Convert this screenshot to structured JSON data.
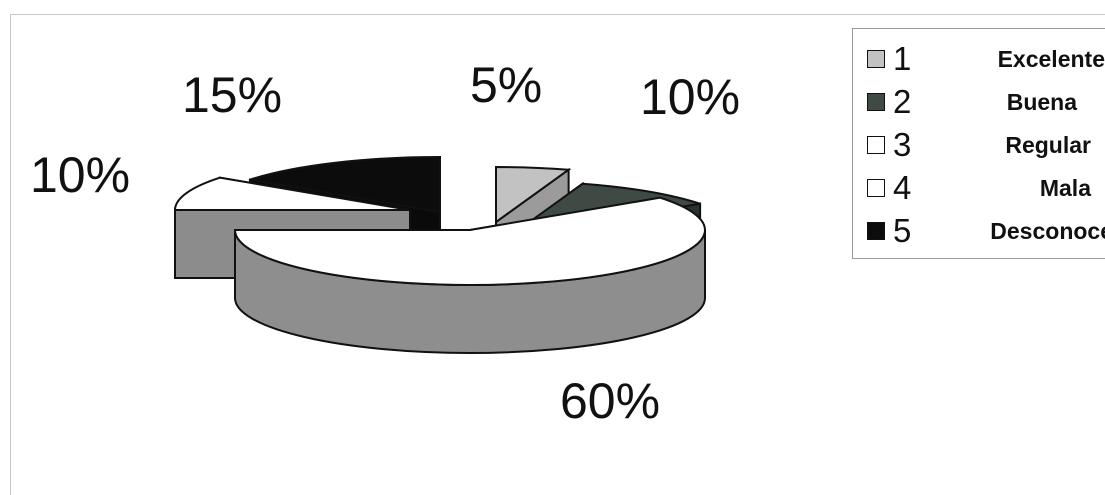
{
  "chart_data": {
    "type": "pie",
    "style": "3d-exploded",
    "categories": [
      "1",
      "2",
      "3",
      "4",
      "5"
    ],
    "legend_names": [
      "Excelente",
      "Buena",
      "Regular",
      "Mala",
      "Desconoce"
    ],
    "values": [
      5,
      10,
      60,
      10,
      15
    ],
    "data_labels": [
      "5%",
      "10%",
      "60%",
      "10%",
      "15%"
    ],
    "colors": [
      "#c2c2c2",
      "#3f4a44",
      "#ffffff",
      "#ffffff",
      "#0c0c0c"
    ],
    "title": "",
    "legend_position": "top-right"
  }
}
